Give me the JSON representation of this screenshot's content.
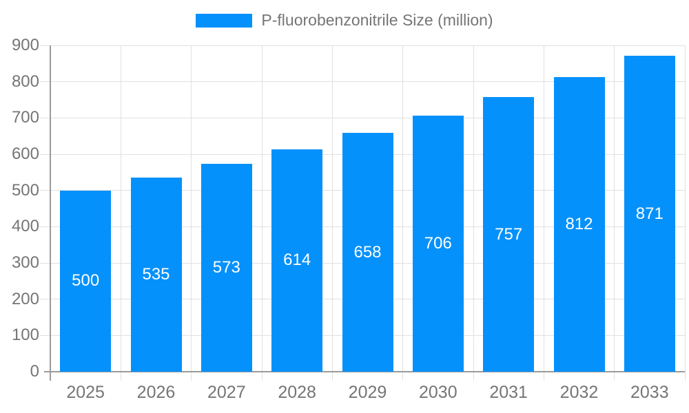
{
  "legend": {
    "label": "P-fluorobenzonitrile Size (million)"
  },
  "colors": {
    "bar": "#0591fb",
    "axis_text": "#757575",
    "value_text": "#ffffff",
    "grid": "#e0e0e0",
    "axis_line": "#9a9a9a",
    "background": "#ffffff"
  },
  "chart_data": {
    "type": "bar",
    "categories": [
      "2025",
      "2026",
      "2027",
      "2028",
      "2029",
      "2030",
      "2031",
      "2032",
      "2033"
    ],
    "values": [
      500,
      535,
      573,
      614,
      658,
      706,
      757,
      812,
      871
    ],
    "series_name": "P-fluorobenzonitrile Size (million)",
    "title": "",
    "xlabel": "",
    "ylabel": "",
    "ylim": [
      0,
      900
    ],
    "yticks": [
      "0",
      "100",
      "200",
      "300",
      "400",
      "500",
      "600",
      "700",
      "800",
      "900"
    ],
    "ytick_step": 100,
    "grid": true,
    "legend_position": "top-center",
    "value_label_position": "inside-middle"
  }
}
